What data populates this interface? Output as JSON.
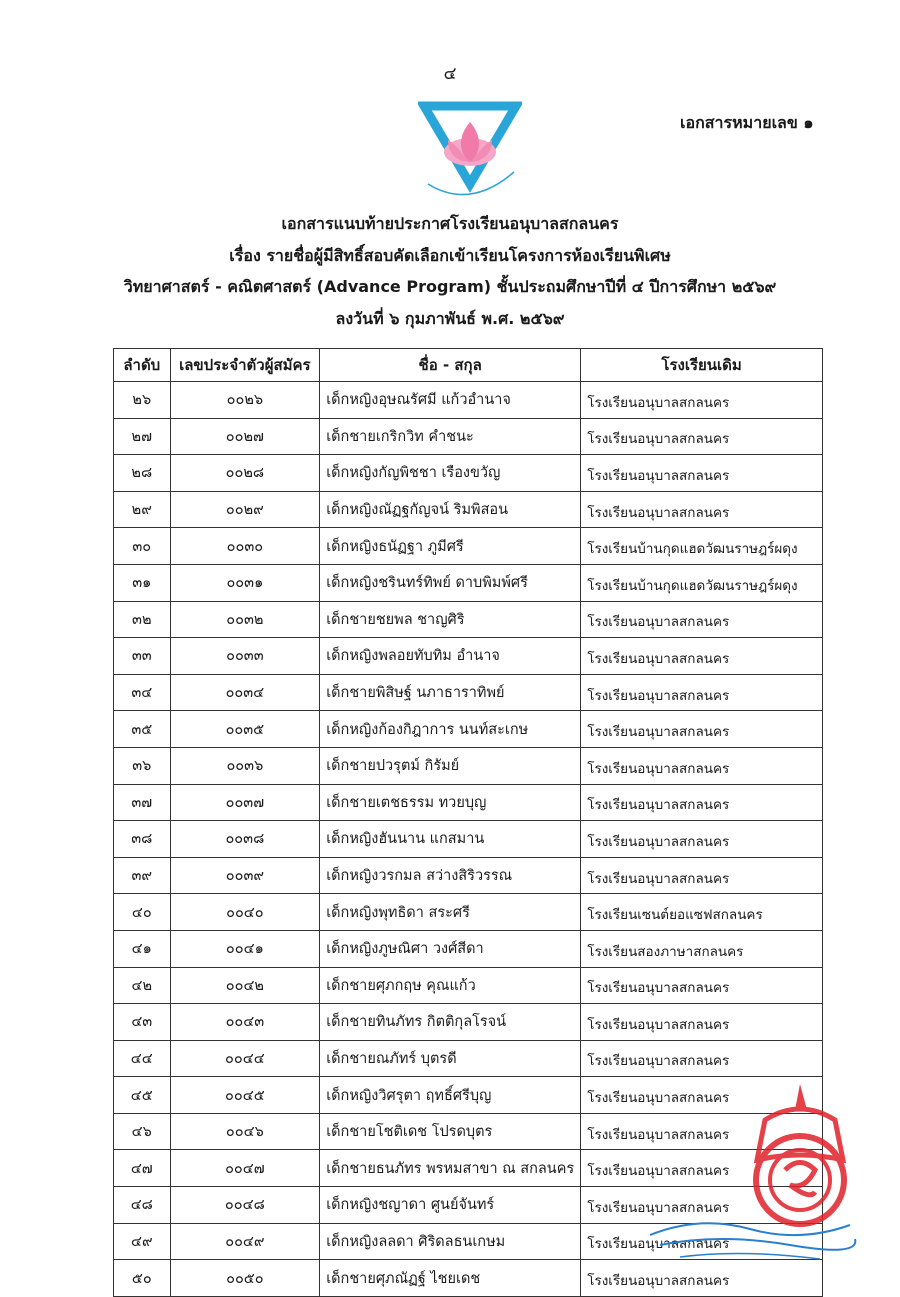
{
  "page_number": "๔",
  "document_number": "เอกสารหมายเลข ๑",
  "logo": {
    "school_name": "โรงเรียนอนุบาลสกลนคร",
    "colors": {
      "triangle": "#2aa5d8",
      "lotus": "#f07aa8"
    }
  },
  "title_lines": [
    "เอกสารแนบท้ายประกาศโรงเรียนอนุบาลสกลนคร",
    "เรื่อง  รายชื่อผู้มีสิทธิ์สอบคัดเลือกเข้าเรียนโครงการห้องเรียนพิเศษ",
    "วิทยาศาสตร์ - คณิตศาสตร์ (Advance Program) ชั้นประถมศึกษาปีที่ ๔ ปีการศึกษา ๒๕๖๙",
    "ลงวันที่ ๖ กุมภาพันธ์ พ.ศ. ๒๕๖๙"
  ],
  "table": {
    "headers": [
      "ลำดับ",
      "เลขประจำตัวผู้สมัคร",
      "ชื่อ - สกุล",
      "โรงเรียนเดิม"
    ],
    "rows": [
      [
        "๒๖",
        "๐๐๒๖",
        "เด็กหญิงอุษณรัศมี แก้วอำนาจ",
        "โรงเรียนอนุบาลสกลนคร"
      ],
      [
        "๒๗",
        "๐๐๒๗",
        "เด็กชายเกริกวิท คำชนะ",
        "โรงเรียนอนุบาลสกลนคร"
      ],
      [
        "๒๘",
        "๐๐๒๘",
        "เด็กหญิงกัญพิชชา เรืองขวัญ",
        "โรงเรียนอนุบาลสกลนคร"
      ],
      [
        "๒๙",
        "๐๐๒๙",
        "เด็กหญิงณัฏฐกัญจน์ ริมพิสอน",
        "โรงเรียนอนุบาลสกลนคร"
      ],
      [
        "๓๐",
        "๐๐๓๐",
        "เด็กหญิงธนัฏฐา ภูมีศรี",
        "โรงเรียนบ้านกุดแฮดวัฒนราษฎร์ผดุง"
      ],
      [
        "๓๑",
        "๐๐๓๑",
        "เด็กหญิงชรินทร์ทิพย์ ดาบพิมพ์ศรี",
        "โรงเรียนบ้านกุดแฮดวัฒนราษฎร์ผดุง"
      ],
      [
        "๓๒",
        "๐๐๓๒",
        "เด็กชายชยพล ชาญศิริ",
        "โรงเรียนอนุบาลสกลนคร"
      ],
      [
        "๓๓",
        "๐๐๓๓",
        "เด็กหญิงพลอยทับทิม อำนาจ",
        "โรงเรียนอนุบาลสกลนคร"
      ],
      [
        "๓๔",
        "๐๐๓๔",
        "เด็กชายพิสิษฐ์ นภาธาราทิพย์",
        "โรงเรียนอนุบาลสกลนคร"
      ],
      [
        "๓๕",
        "๐๐๓๕",
        "เด็กหญิงก้องกิฎาการ นนท์สะเกษ",
        "โรงเรียนอนุบาลสกลนคร"
      ],
      [
        "๓๖",
        "๐๐๓๖",
        "เด็กชายปวรุตม์ กิรัมย์",
        "โรงเรียนอนุบาลสกลนคร"
      ],
      [
        "๓๗",
        "๐๐๓๗",
        "เด็กชายเตชธรรม ทวยบุญ",
        "โรงเรียนอนุบาลสกลนคร"
      ],
      [
        "๓๘",
        "๐๐๓๘",
        "เด็กหญิงฮันนาน  แกสมาน",
        "โรงเรียนอนุบาลสกลนคร"
      ],
      [
        "๓๙",
        "๐๐๓๙",
        "เด็กหญิงวรกมล  สว่างสิริวรรณ",
        "โรงเรียนอนุบาลสกลนคร"
      ],
      [
        "๔๐",
        "๐๐๔๐",
        "เด็กหญิงพุทธิดา  สระศรี",
        "โรงเรียนเซนต์ยอแซฟสกลนคร"
      ],
      [
        "๔๑",
        "๐๐๔๑",
        "เด็กหญิงภูษณิศา  วงศ์สีดา",
        "โรงเรียนสองภาษาสกลนคร"
      ],
      [
        "๔๒",
        "๐๐๔๒",
        "เด็กชายศุภกฤษ  คุณแก้ว",
        "โรงเรียนอนุบาลสกลนคร"
      ],
      [
        "๔๓",
        "๐๐๔๓",
        "เด็กชายทินภัทร  กิตติกุลโรจน์",
        "โรงเรียนอนุบาลสกลนคร"
      ],
      [
        "๔๔",
        "๐๐๔๔",
        "เด็กชายณภัทร์  บุตรดี",
        "โรงเรียนอนุบาลสกลนคร"
      ],
      [
        "๔๕",
        "๐๐๔๕",
        "เด็กหญิงวิศรุตา  ฤทธิ์ศรีบุญ",
        "โรงเรียนอนุบาลสกลนคร"
      ],
      [
        "๔๖",
        "๐๐๔๖",
        "เด็กชายโชติเดช  โปรดบุตร",
        "โรงเรียนอนุบาลสกลนคร"
      ],
      [
        "๔๗",
        "๐๐๔๗",
        "เด็กชายธนภัทร พรหมสาขา ณ สกลนคร",
        "โรงเรียนอนุบาลสกลนคร"
      ],
      [
        "๔๘",
        "๐๐๔๘",
        "เด็กหญิงชญาดา  ศูนย์จันทร์",
        "โรงเรียนอนุบาลสกลนคร"
      ],
      [
        "๔๙",
        "๐๐๔๙",
        "เด็กหญิงลลดา  ศิริดลธนเกษม",
        "โรงเรียนอนุบาลสกลนคร"
      ],
      [
        "๕๐",
        "๐๐๕๐",
        "เด็กชายศุภณัฏฐ์  ไชยเดช",
        "โรงเรียนอนุบาลสกลนคร"
      ]
    ]
  },
  "seal": {
    "text": "โรงเรียนอนุบาลสกลนคร",
    "color": "#e0202a"
  },
  "signature_color": "#2a7fd0"
}
